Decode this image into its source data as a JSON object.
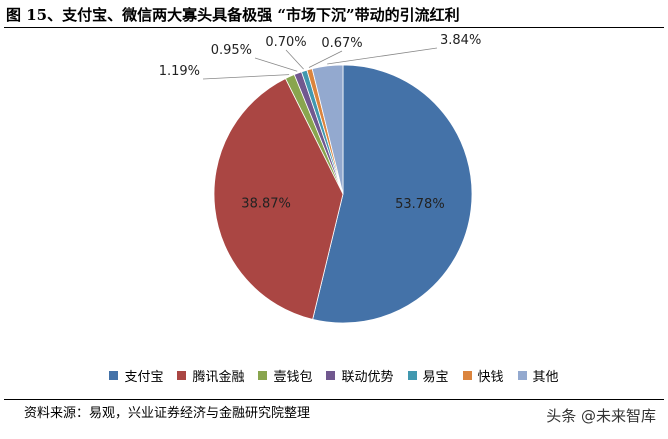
{
  "header": {
    "title": "图 15、支付宝、微信两大寡头具备极强 “市场下沉”带动的引流红利"
  },
  "chart_data": {
    "type": "pie",
    "title": "",
    "legend_position": "bottom",
    "categories": [
      "支付宝",
      "腾讯金融",
      "壹钱包",
      "联动优势",
      "易宝",
      "快钱",
      "其他"
    ],
    "values": [
      53.78,
      38.87,
      1.19,
      0.95,
      0.7,
      0.67,
      3.84
    ],
    "labels": [
      "53.78%",
      "38.87%",
      "1.19%",
      "0.95%",
      "0.70%",
      "0.67%",
      "3.84%"
    ],
    "colors": [
      "#4472A8",
      "#AA4643",
      "#89A54E",
      "#71588F",
      "#4198AF",
      "#DB843D",
      "#93A9CF"
    ]
  },
  "footer": {
    "source": "资料来源：易观，兴业证券经济与金融研究院整理",
    "watermark": "头条 @未来智库"
  }
}
